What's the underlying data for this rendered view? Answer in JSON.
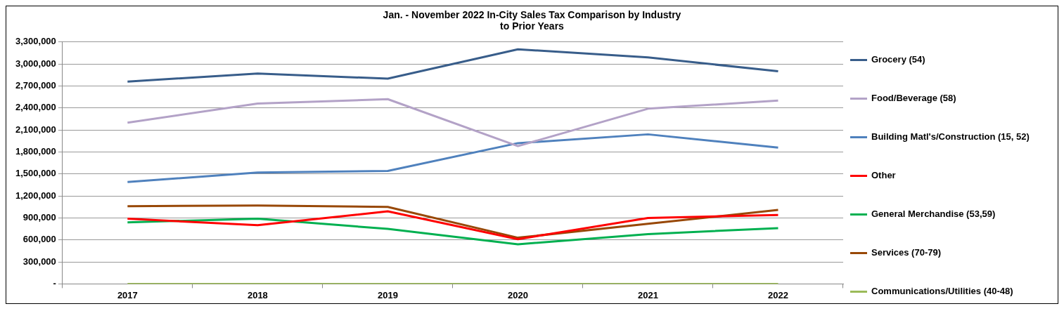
{
  "chart_data": {
    "type": "line",
    "title": "Jan. - November 2022 In-City Sales Tax Comparison by Industry\nto Prior Years",
    "categories": [
      "2017",
      "2018",
      "2019",
      "2020",
      "2021",
      "2022"
    ],
    "series": [
      {
        "name": "Grocery (54)",
        "color": "#385d8a",
        "values": [
          2760000,
          2870000,
          2800000,
          3200000,
          3090000,
          2900000
        ]
      },
      {
        "name": "Food/Beverage (58)",
        "color": "#b3a2c7",
        "values": [
          2200000,
          2460000,
          2520000,
          1880000,
          2390000,
          2500000
        ]
      },
      {
        "name": "Building Matl's/Construction (15, 52)",
        "color": "#4f81bd",
        "values": [
          1390000,
          1520000,
          1540000,
          1920000,
          2040000,
          1860000
        ]
      },
      {
        "name": "Other",
        "color": "#ff0000",
        "values": [
          890000,
          800000,
          990000,
          610000,
          900000,
          940000
        ]
      },
      {
        "name": "General Merchandise (53,59)",
        "color": "#00b050",
        "values": [
          840000,
          890000,
          750000,
          540000,
          680000,
          760000
        ]
      },
      {
        "name": "Services (70-79)",
        "color": "#984807",
        "values": [
          1060000,
          1070000,
          1050000,
          630000,
          820000,
          1010000
        ]
      },
      {
        "name": "Communications/Utilities (40-48)",
        "color": "#9bbb59",
        "values": [
          0,
          0,
          0,
          0,
          0,
          0
        ]
      }
    ],
    "ylim": [
      0,
      3300000
    ],
    "yticks": [
      {
        "value": 0,
        "label": "-"
      },
      {
        "value": 300000,
        "label": "300,000"
      },
      {
        "value": 600000,
        "label": "600,000"
      },
      {
        "value": 900000,
        "label": "900,000"
      },
      {
        "value": 1200000,
        "label": "1,200,000"
      },
      {
        "value": 1500000,
        "label": "1,500,000"
      },
      {
        "value": 1800000,
        "label": "1,800,000"
      },
      {
        "value": 2100000,
        "label": "2,100,000"
      },
      {
        "value": 2400000,
        "label": "2,400,000"
      },
      {
        "value": 2700000,
        "label": "2,700,000"
      },
      {
        "value": 3000000,
        "label": "3,000,000"
      },
      {
        "value": 3300000,
        "label": "3,300,000"
      }
    ],
    "grid": "y",
    "legend": "right"
  }
}
